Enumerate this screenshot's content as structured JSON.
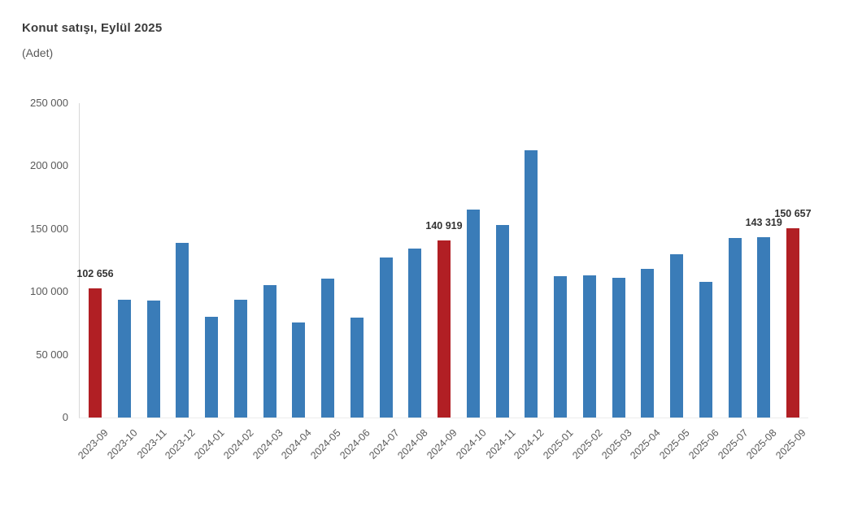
{
  "header": {
    "title": "Konut satışı, Eylül 2025",
    "subtitle": "(Adet)"
  },
  "chart_data": {
    "type": "bar",
    "title": "Konut satışı, Eylül 2025",
    "subtitle": "(Adet)",
    "xlabel": "",
    "ylabel": "(Adet)",
    "categories": [
      "2023-09",
      "2023-10",
      "2023-11",
      "2023-12",
      "2024-01",
      "2024-02",
      "2024-03",
      "2024-04",
      "2024-05",
      "2024-06",
      "2024-07",
      "2024-08",
      "2024-09",
      "2024-10",
      "2024-11",
      "2024-12",
      "2025-01",
      "2025-02",
      "2025-03",
      "2025-04",
      "2025-05",
      "2025-06",
      "2025-07",
      "2025-08",
      "2025-09"
    ],
    "values": [
      102656,
      93761,
      93178,
      138577,
      80308,
      93902,
      105476,
      75569,
      110588,
      79313,
      127088,
      134155,
      140919,
      165138,
      153014,
      212637,
      112173,
      112818,
      110795,
      118359,
      130025,
      107723,
      142858,
      143319,
      150657
    ],
    "highlighted_categories": [
      "2023-09",
      "2024-09",
      "2025-09"
    ],
    "data_labels": {
      "2023-09": "102 656",
      "2024-09": "140 919",
      "2025-08": "143 319",
      "2025-09": "150 657"
    },
    "ylim": [
      0,
      250000
    ],
    "yticks": [
      0,
      50000,
      100000,
      150000,
      200000,
      250000
    ],
    "ytick_labels": [
      "0",
      "50 000",
      "100 000",
      "150 000",
      "200 000",
      "250 000"
    ],
    "bar_color": "#3a7cb8",
    "highlight_color": "#b11f24",
    "label_color": "#333333",
    "axis_line_color": "#d8d8d8",
    "grid": false,
    "legend": false
  }
}
